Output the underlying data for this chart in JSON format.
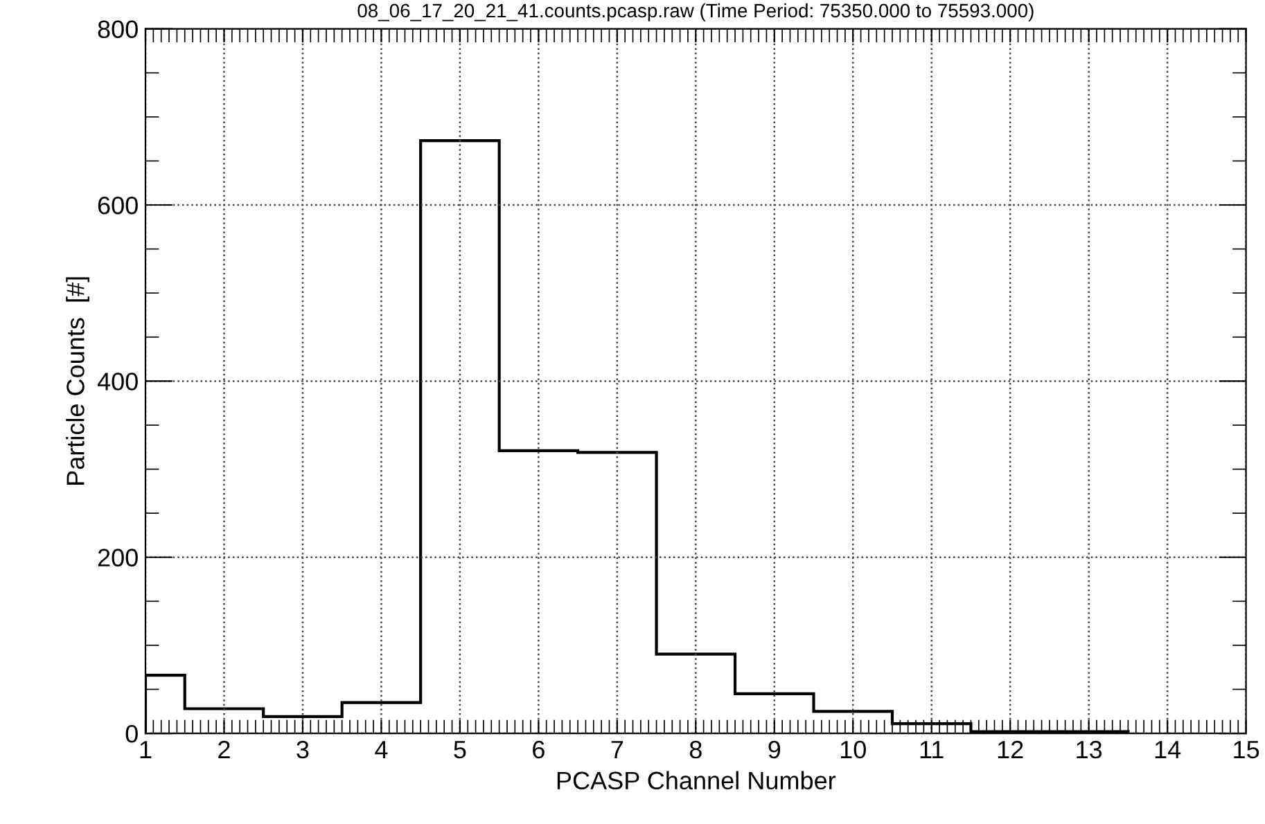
{
  "chart_data": {
    "type": "histogram",
    "title": "08_06_17_20_21_41.counts.pcasp.raw (Time Period: 75350.000 to 75593.000)",
    "xlabel": "PCASP Channel Number",
    "ylabel": "Particle Counts  [#]",
    "bins": [
      1,
      1.5,
      2.5,
      3.5,
      4.5,
      5.5,
      6.5,
      7.5,
      8.5,
      9.5,
      10.5,
      11.5,
      12.5,
      13.5
    ],
    "values": [
      66,
      28,
      19,
      35,
      673,
      321,
      319,
      90,
      45,
      25,
      11,
      2,
      2
    ],
    "color": "#000000",
    "xlim": [
      1,
      15
    ],
    "xticks": [
      1,
      2,
      3,
      4,
      5,
      6,
      7,
      8,
      9,
      10,
      11,
      12,
      13,
      14,
      15
    ],
    "ylim": [
      0,
      800
    ],
    "yticks": [
      0,
      200,
      400,
      600,
      800
    ],
    "grid": true,
    "line_style": "dotted"
  }
}
